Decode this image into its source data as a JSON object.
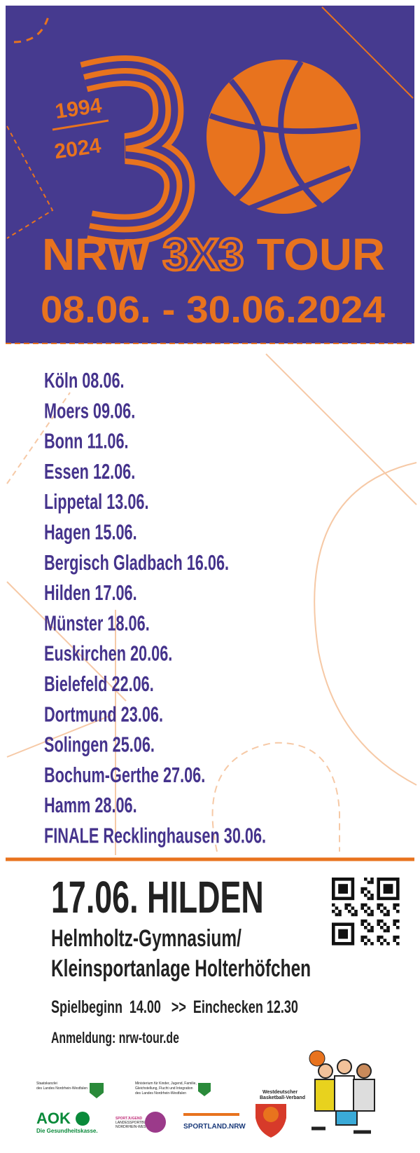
{
  "header": {
    "years": [
      "1994",
      "2024"
    ],
    "title": [
      "NRW",
      "3X3",
      "TOUR"
    ],
    "dates": "08.06. - 30.06.2024"
  },
  "schedule": [
    "Köln 08.06.",
    "Moers 09.06.",
    "Bonn 11.06.",
    "Essen 12.06.",
    "Lippetal 13.06.",
    "Hagen 15.06.",
    "Bergisch Gladbach 16.06.",
    "Hilden 17.06.",
    "Münster 18.06.",
    "Euskirchen 20.06.",
    "Bielefeld 22.06.",
    "Dortmund 23.06.",
    "Solingen 25.06.",
    "Bochum-Gerthe 27.06.",
    "Hamm 28.06.",
    "FINALE  Recklinghausen 30.06."
  ],
  "event": {
    "headline": "17.06. HILDEN",
    "venue": [
      "Helmholtz-Gymnasium/",
      "Kleinsportanlage Holterhöfchen"
    ],
    "times": "Spielbeginn  14.00   >>  Einchecken 12.30",
    "registration": "Anmeldung: nrw-tour.de"
  },
  "sponsors": {
    "staatskanzlei": [
      "Staatskanzlei",
      "des Landes Nordrhein-Westfalen"
    ],
    "ministerium": [
      "Ministerium für Kinder, Jugend, Familie,",
      "Gleichstellung, Flucht und Integration",
      "des Landes Nordrhein-Westfalen"
    ],
    "wbv": [
      "Westdeutscher",
      "Basketball-Verband"
    ],
    "aok": [
      "AOK",
      "Die Gesundheitskasse."
    ],
    "sportjugend": [
      "SPORTJUGEND",
      "LANDESSPORTBUND",
      "NORDRHEIN-WESTFALEN"
    ],
    "sportland": "SPORTLAND.NRW"
  }
}
